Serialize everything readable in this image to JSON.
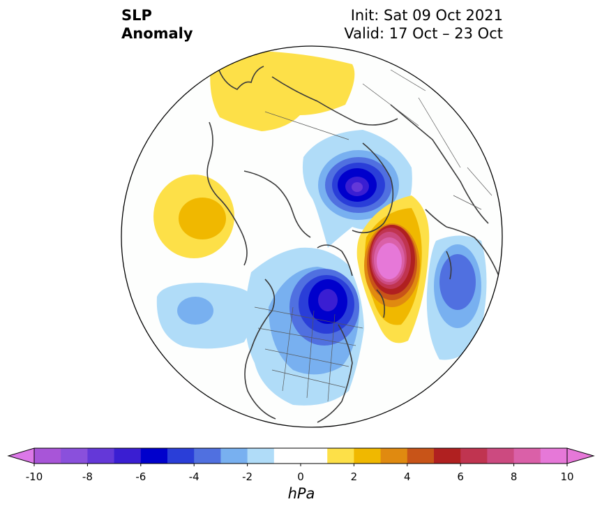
{
  "header": {
    "title_line1": "SLP",
    "title_line2": "Anomaly",
    "init": "Init: Sat 09 Oct 2021",
    "valid": "Valid: 17 Oct – 23 Oct"
  },
  "map": {
    "projection": "north-polar-stereographic",
    "variable": "SLP Anomaly",
    "features": [
      {
        "type": "high",
        "value_hPa": 3,
        "region": "north of Scandinavia / Barents Sea"
      },
      {
        "type": "high",
        "value_hPa": 3,
        "region": "western Pacific / East Siberia"
      },
      {
        "type": "low",
        "value_hPa": -6,
        "region": "Greenland / Baffin Bay"
      },
      {
        "type": "low",
        "value_hPa": -6,
        "region": "Hudson Bay / central Canada"
      },
      {
        "type": "high",
        "value_hPa": 10,
        "region": "North Atlantic / near Iceland and UK"
      },
      {
        "type": "low",
        "value_hPa": -4,
        "region": "western Europe / eastern Atlantic"
      },
      {
        "type": "low",
        "value_hPa": -4,
        "region": "Gulf of Alaska / North Pacific"
      }
    ]
  },
  "colorbar": {
    "unit": "hPa",
    "extend": "both",
    "ticks": [
      "-10",
      "-8",
      "-6",
      "-4",
      "-2",
      "0",
      "2",
      "4",
      "6",
      "8",
      "10"
    ],
    "levels": [
      -10,
      -9,
      -8,
      -7,
      -6,
      -5,
      -4,
      -3,
      -2,
      -1,
      1,
      2,
      3,
      4,
      5,
      6,
      7,
      8,
      9,
      10
    ],
    "colors": {
      "under": "#dc78e8",
      "lt_m9": "#a855d8",
      "m9_m8": "#8a50dc",
      "m8_m7": "#6438d8",
      "m7_m6": "#3a1ed2",
      "m6_m5": "#0000cc",
      "m5_m4": "#2a3ed8",
      "m4_m3": "#5070e0",
      "m3_m2": "#78b0f0",
      "m2_m1": "#b0dcf8",
      "m1_p1": "#ffffff",
      "p1_p2": "#fde048",
      "p2_p3": "#f0b800",
      "p3_p4": "#e08a10",
      "p4_p5": "#c85418",
      "p5_p6": "#b02020",
      "p6_p7": "#c03450",
      "p7_p8": "#cc4a80",
      "p8_p9": "#da60a8",
      "over": "#e678d8"
    }
  }
}
